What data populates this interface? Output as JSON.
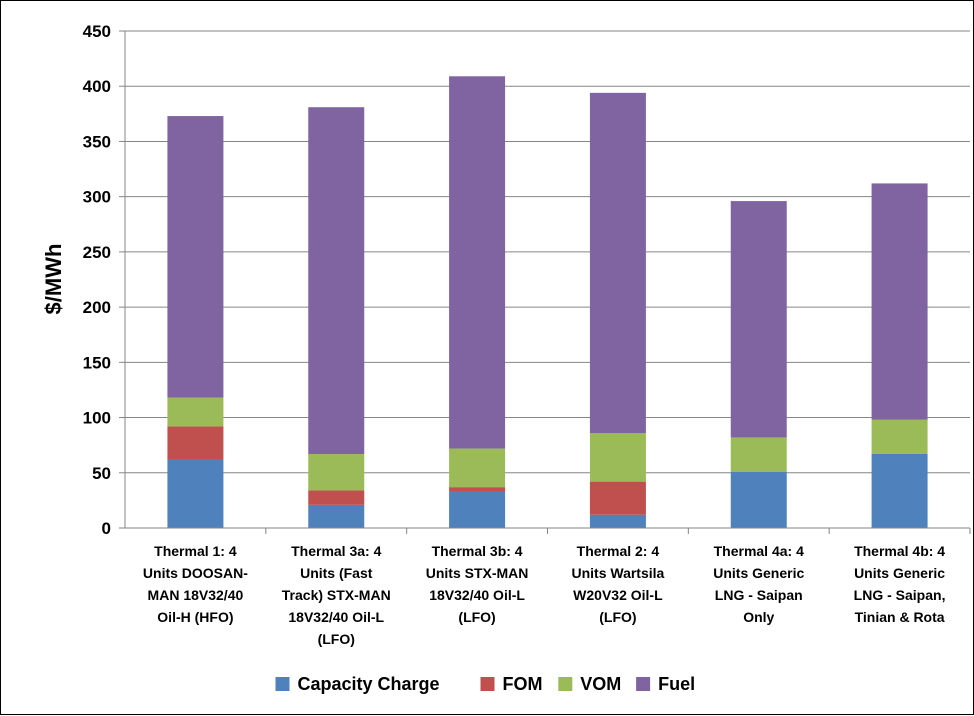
{
  "chart_data": {
    "type": "bar",
    "stacked": true,
    "ylabel": "$/MWh",
    "ylim": [
      0,
      450
    ],
    "yticks": [
      "0",
      "50",
      "100",
      "150",
      "200",
      "250",
      "300",
      "350",
      "400",
      "450"
    ],
    "grid": true,
    "legend_position": "bottom",
    "categories": [
      [
        "Thermal 1: 4",
        "Units DOOSAN-",
        "MAN 18V32/40",
        "Oil-H (HFO)"
      ],
      [
        "Thermal 3a: 4",
        "Units (Fast",
        "Track) STX-MAN",
        "18V32/40 Oil-L",
        "(LFO)"
      ],
      [
        "Thermal 3b: 4",
        "Units STX-MAN",
        "18V32/40 Oil-L",
        "(LFO)"
      ],
      [
        "Thermal 2: 4",
        "Units Wartsila",
        "W20V32 Oil-L",
        "(LFO)"
      ],
      [
        "Thermal 4a: 4",
        "Units Generic",
        "LNG - Saipan",
        "Only"
      ],
      [
        "Thermal 4b: 4",
        "Units Generic",
        "LNG - Saipan,",
        "Tinian & Rota"
      ]
    ],
    "series": [
      {
        "name": "Capacity Charge",
        "color": "#4F81BD",
        "values": [
          62,
          21,
          33,
          12,
          51,
          67
        ]
      },
      {
        "name": "FOM",
        "color": "#C0504D",
        "values": [
          30,
          13,
          4,
          30,
          0,
          0
        ]
      },
      {
        "name": "VOM",
        "color": "#9BBB59",
        "values": [
          26,
          33,
          35,
          44,
          31,
          31
        ]
      },
      {
        "name": "Fuel",
        "color": "#8064A2",
        "values": [
          255,
          314,
          337,
          308,
          214,
          214
        ]
      }
    ]
  }
}
